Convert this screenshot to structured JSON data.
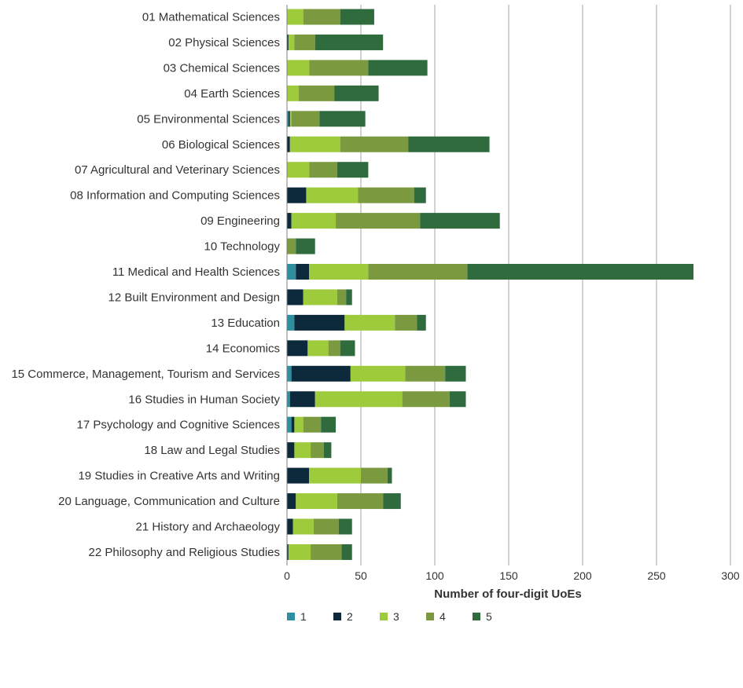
{
  "chart_data": {
    "type": "bar",
    "orientation": "horizontal",
    "stacked": true,
    "title": "",
    "xlabel": "Number of four-digit UoEs",
    "ylabel": "",
    "xlim": [
      0,
      300
    ],
    "xticks": [
      0,
      50,
      100,
      150,
      200,
      250,
      300
    ],
    "grid": "vertical",
    "legend": "bottom",
    "categories": [
      "01 Mathematical Sciences",
      "02 Physical Sciences",
      "03 Chemical Sciences",
      "04 Earth Sciences",
      "05 Environmental Sciences",
      "06 Biological Sciences",
      "07 Agricultural and Veterinary Sciences",
      "08 Information and Computing Sciences",
      "09 Engineering",
      "10 Technology",
      "11 Medical and Health Sciences",
      "12 Built Environment and Design",
      "13 Education",
      "14 Economics",
      "15 Commerce, Management, Tourism and Services",
      "16 Studies in Human Society",
      "17 Psychology and Cognitive Sciences",
      "18 Law and Legal Studies",
      "19 Studies in Creative Arts and Writing",
      "20 Language, Communication and Culture",
      "21 History and Archaeology",
      "22 Philosophy and Religious Studies"
    ],
    "series": [
      {
        "name": "1",
        "color": "#2e8fa0",
        "values": [
          0,
          0,
          0,
          0,
          1,
          0,
          0,
          0,
          0,
          0,
          6,
          0,
          5,
          0,
          3,
          2,
          3,
          0,
          0,
          0,
          0,
          0
        ]
      },
      {
        "name": "2",
        "color": "#0d2a3c",
        "values": [
          0,
          1,
          0,
          0,
          1,
          2,
          0,
          13,
          3,
          0,
          9,
          11,
          34,
          14,
          40,
          17,
          2,
          5,
          15,
          6,
          4,
          1
        ]
      },
      {
        "name": "3",
        "color": "#9dcb3c",
        "values": [
          11,
          4,
          15,
          8,
          1,
          34,
          15,
          35,
          30,
          0,
          40,
          23,
          34,
          14,
          37,
          59,
          6,
          11,
          35,
          28,
          14,
          15
        ]
      },
      {
        "name": "4",
        "color": "#7b9a3f",
        "values": [
          25,
          14,
          40,
          24,
          19,
          46,
          19,
          38,
          57,
          6,
          67,
          6,
          15,
          8,
          27,
          32,
          12,
          9,
          18,
          31,
          17,
          21
        ]
      },
      {
        "name": "5",
        "color": "#2f6b3d",
        "values": [
          23,
          46,
          40,
          30,
          31,
          55,
          21,
          8,
          54,
          13,
          153,
          4,
          6,
          10,
          14,
          11,
          10,
          5,
          3,
          12,
          9,
          7
        ]
      }
    ]
  }
}
